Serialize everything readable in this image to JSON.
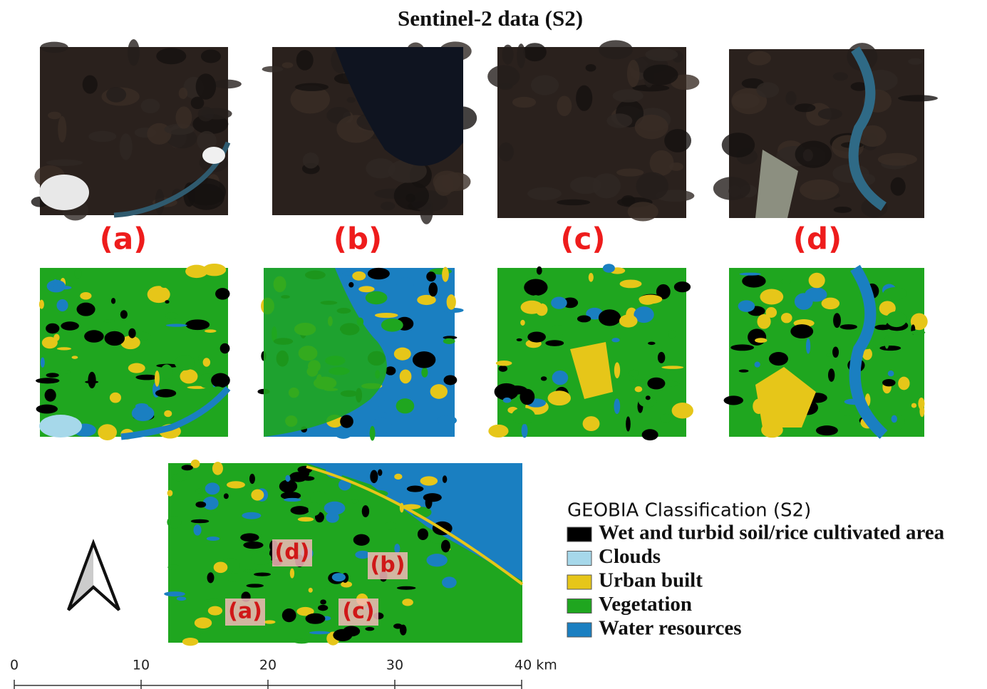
{
  "title": "Sentinel-2 data (S2)",
  "panels": [
    {
      "label": "(a)"
    },
    {
      "label": "(b)"
    },
    {
      "label": "(c)"
    },
    {
      "label": "(d)"
    }
  ],
  "overview": {
    "labels": [
      "(d)",
      "(b)",
      "(a)",
      "(c)"
    ]
  },
  "legend": {
    "title": "GEOBIA Classification (S2)",
    "items": [
      {
        "label": "Wet and turbid soil/rice cultivated area",
        "color": "#000000"
      },
      {
        "label": "Clouds",
        "color": "#a6d8ea"
      },
      {
        "label": "Urban built",
        "color": "#e6c619"
      },
      {
        "label": "Vegetation",
        "color": "#1fa61f"
      },
      {
        "label": "Water resources",
        "color": "#1a7fc1"
      }
    ]
  },
  "scale_bar": {
    "ticks": [
      0,
      10,
      20,
      30,
      {
        "value": 40,
        "label": "40 km"
      }
    ]
  }
}
